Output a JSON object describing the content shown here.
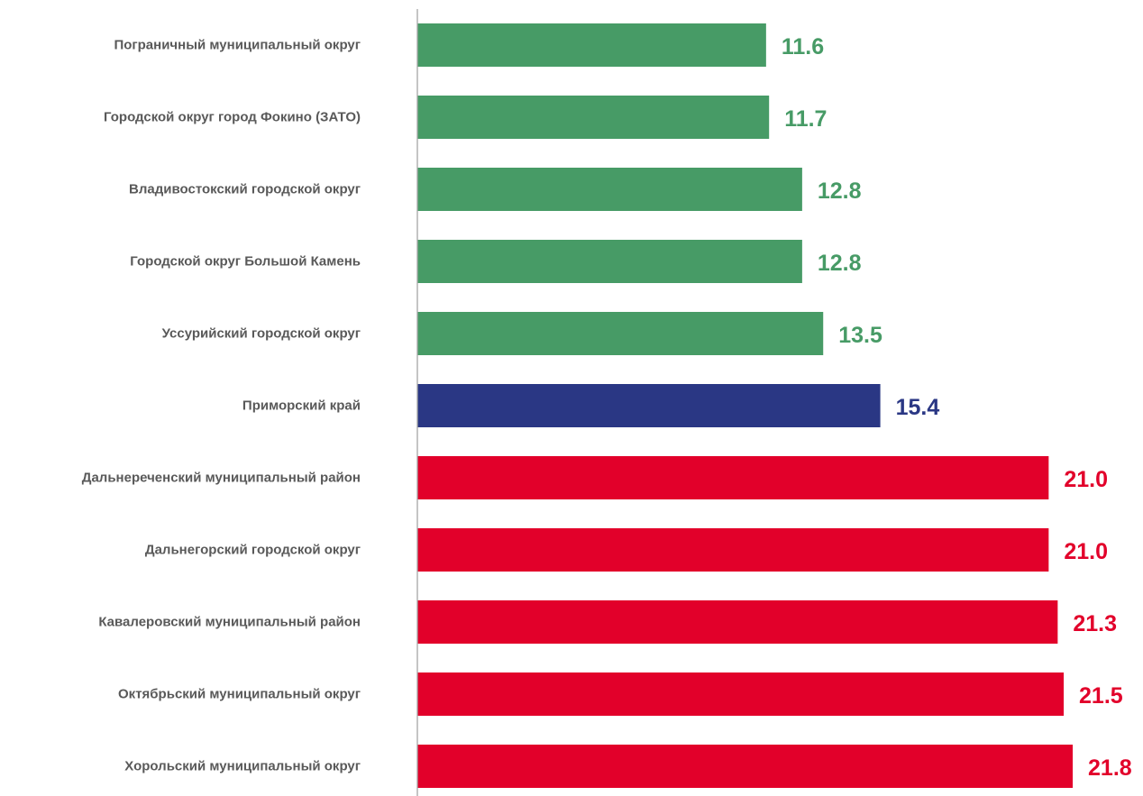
{
  "chart_data": {
    "type": "bar",
    "orientation": "horizontal",
    "categories": [
      "Пограничный муниципальный округ",
      "Городской округ город Фокино (ЗАТО)",
      "Владивостокский городской округ",
      "Городской округ Большой Камень",
      "Уссурийский городской округ",
      "Приморский край",
      "Дальнереченский муниципальный район",
      "Дальнегорский городской округ",
      "Кавалеровский муниципальный район",
      "Октябрьский муниципальный округ",
      "Хорольский муниципальный округ"
    ],
    "values": [
      11.6,
      11.7,
      12.8,
      12.8,
      13.5,
      15.4,
      21.0,
      21.0,
      21.3,
      21.5,
      21.8
    ],
    "value_labels": [
      "11.6",
      "11.7",
      "12.8",
      "12.8",
      "13.5",
      "15.4",
      "21.0",
      "21.0",
      "21.3",
      "21.5",
      "21.8"
    ],
    "bar_groups": [
      "low",
      "low",
      "low",
      "low",
      "low",
      "region",
      "high",
      "high",
      "high",
      "high",
      "high"
    ],
    "colors": {
      "low": "#479b66",
      "region": "#2a3784",
      "high": "#e2002a",
      "axis": "#a6a6a6"
    },
    "xlim": [
      0,
      23
    ],
    "grid": false,
    "legend": "none"
  }
}
